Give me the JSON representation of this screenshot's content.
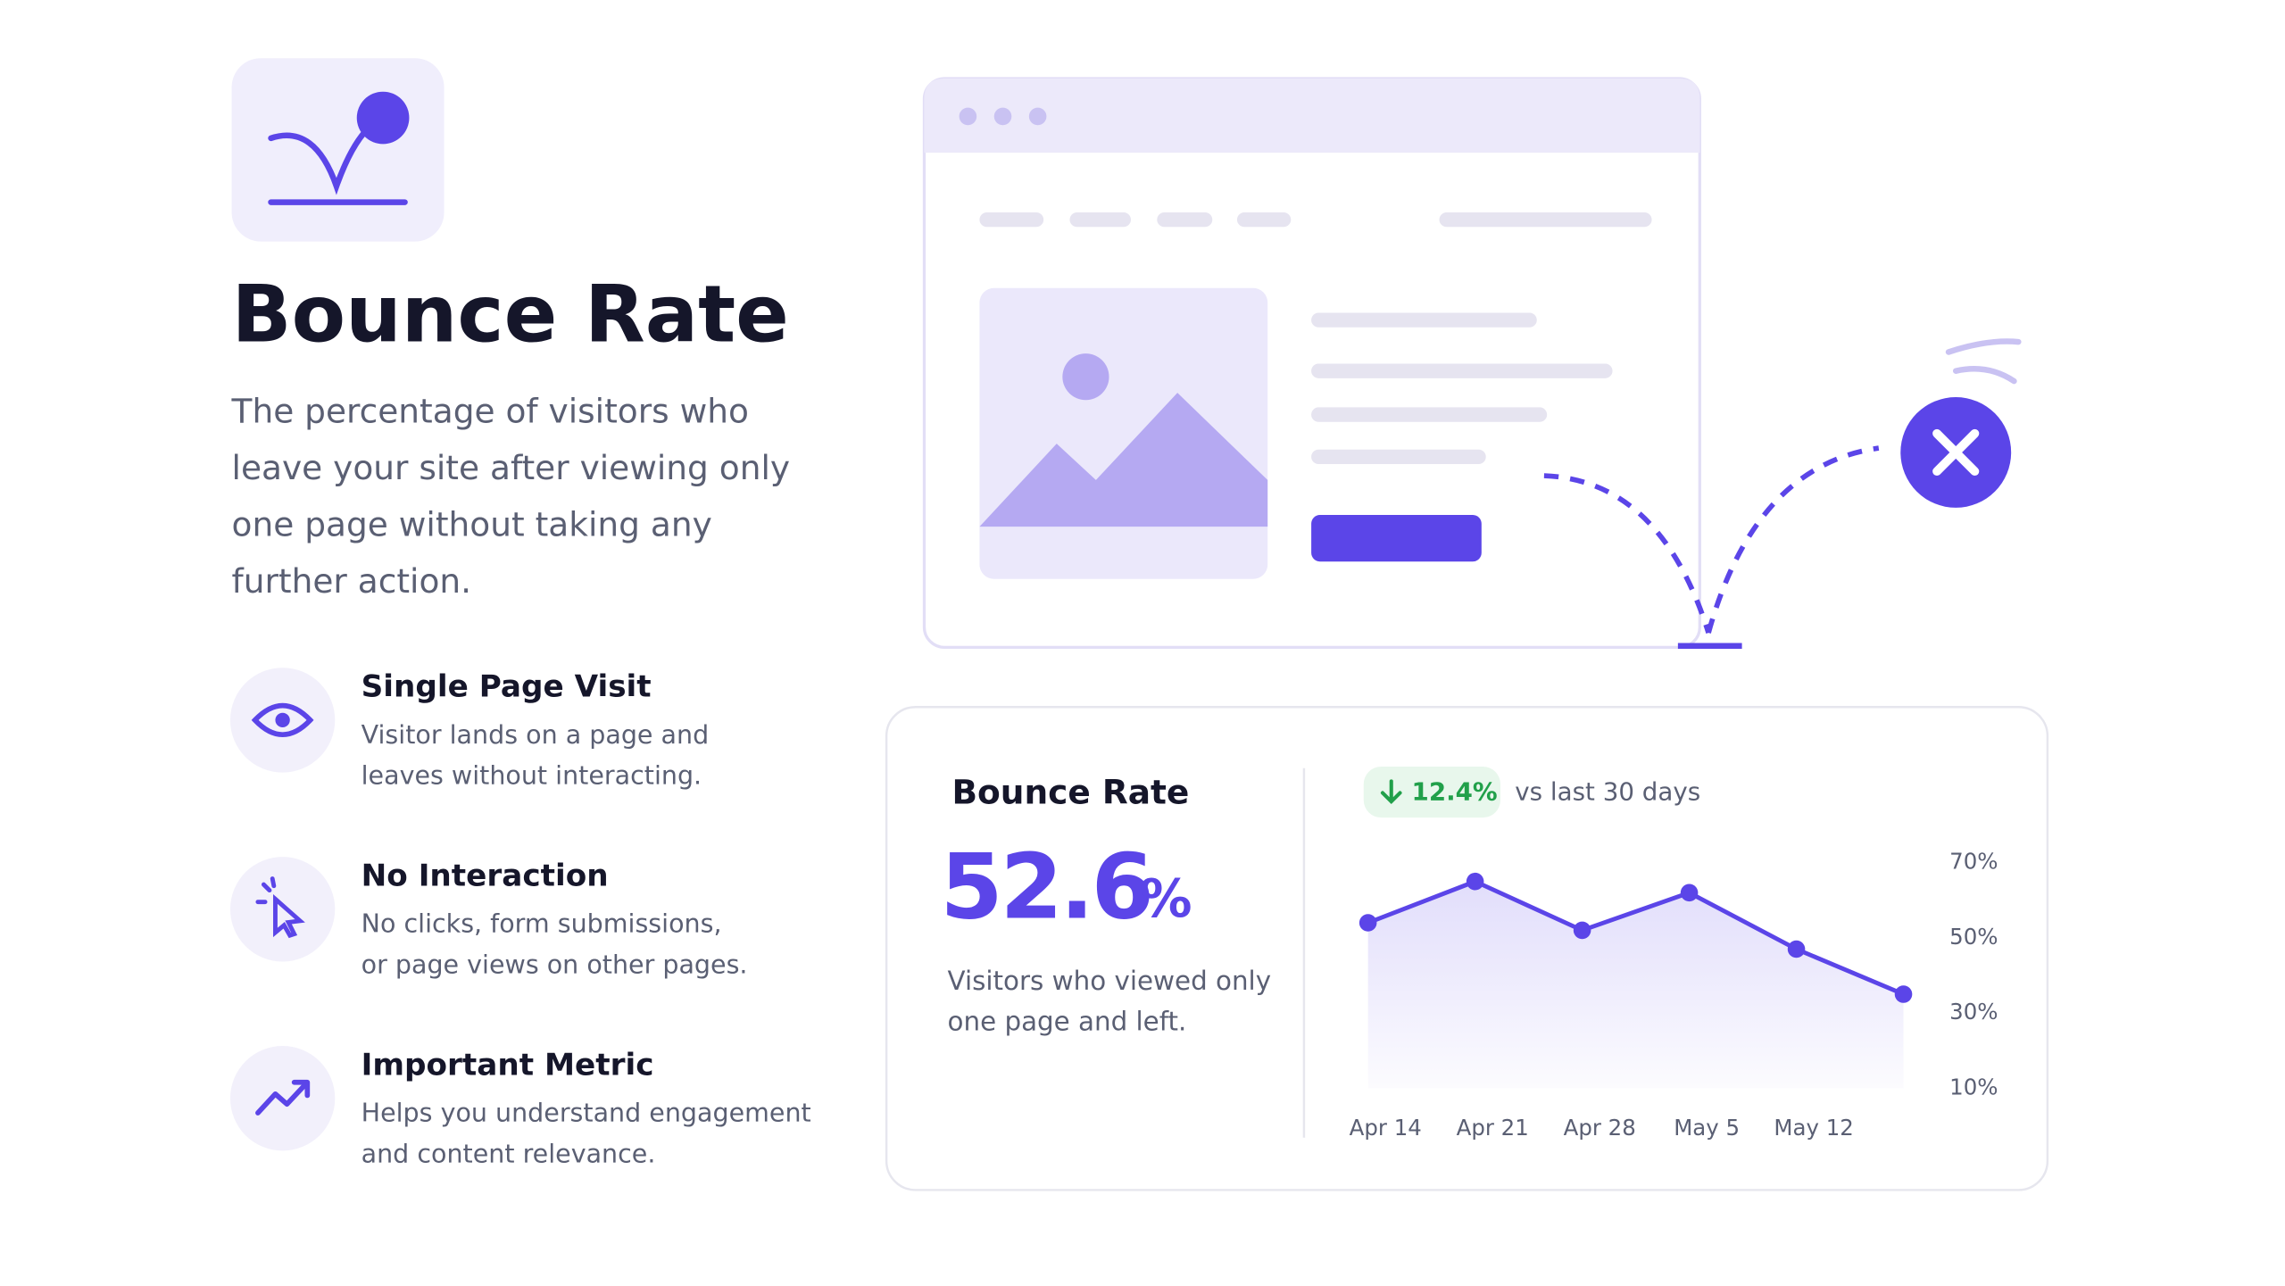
{
  "header": {
    "title": "Bounce Rate",
    "description": [
      "The percentage of visitors who",
      "leave your site after viewing only",
      "one page without taking any",
      "further action."
    ]
  },
  "features": [
    {
      "title": "Single Page Visit",
      "lines": [
        "Visitor lands on a page and",
        "leaves without interacting."
      ]
    },
    {
      "title": "No Interaction",
      "lines": [
        "No clicks, form submissions,",
        "or page views on other pages."
      ]
    },
    {
      "title": "Important Metric",
      "lines": [
        "Helps you understand engagement",
        "and content relevance."
      ]
    }
  ],
  "card": {
    "title": "Bounce Rate",
    "value": "52.6",
    "unit": "%",
    "lines": [
      "Visitors who viewed only",
      "one page and left."
    ],
    "badge": "12.4%",
    "comparison": "vs last 30 days"
  },
  "chart_data": {
    "type": "line",
    "categories": [
      "Apr 14",
      "Apr 21",
      "Apr 28",
      "May 5",
      "May 12",
      null
    ],
    "series": [
      {
        "name": "Bounce Rate",
        "color": "#5b45e8",
        "values": [
          54,
          65,
          52,
          62,
          47,
          35
        ]
      }
    ],
    "ylim": [
      10,
      70
    ],
    "yticks": [
      {
        "value": 70,
        "label": "70%"
      },
      {
        "value": 50,
        "label": "50%"
      },
      {
        "value": 30,
        "label": "30%"
      },
      {
        "value": 10,
        "label": "10%"
      }
    ]
  }
}
